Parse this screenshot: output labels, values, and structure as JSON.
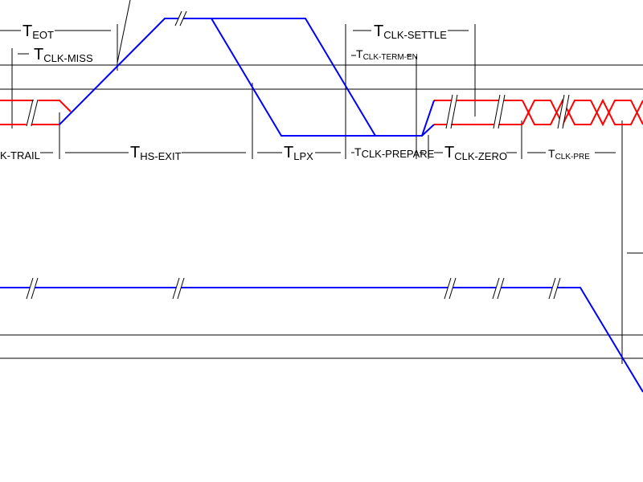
{
  "colors": {
    "clock_lane": "#0000ff",
    "hs_differential": "#ff0000",
    "reference_lines": "#000000",
    "background": "#ffffff"
  },
  "timing_labels": {
    "t_eot": {
      "main": "T",
      "sub": "EOT"
    },
    "t_clk_miss": {
      "main": "T",
      "sub": "CLK-MISS"
    },
    "t_clk_settle": {
      "main": "T",
      "sub": "CLK-SETTLE"
    },
    "t_clk_term_en": {
      "main": "T",
      "sub": "CLK-TERM-EN"
    },
    "t_clk_trail": {
      "main": "",
      "sub": "K-TRAIL"
    },
    "t_hs_exit": {
      "main": "T",
      "sub": "HS-EXIT"
    },
    "t_lpx": {
      "main": "T",
      "sub": "LPX"
    },
    "t_clk_prepare": {
      "main": "T",
      "sub": "CLK-PREPARE"
    },
    "t_clk_zero": {
      "main": "T",
      "sub": "CLK-ZERO"
    },
    "t_clk_pre": {
      "main": "T",
      "sub": "CLK-PRE"
    }
  }
}
